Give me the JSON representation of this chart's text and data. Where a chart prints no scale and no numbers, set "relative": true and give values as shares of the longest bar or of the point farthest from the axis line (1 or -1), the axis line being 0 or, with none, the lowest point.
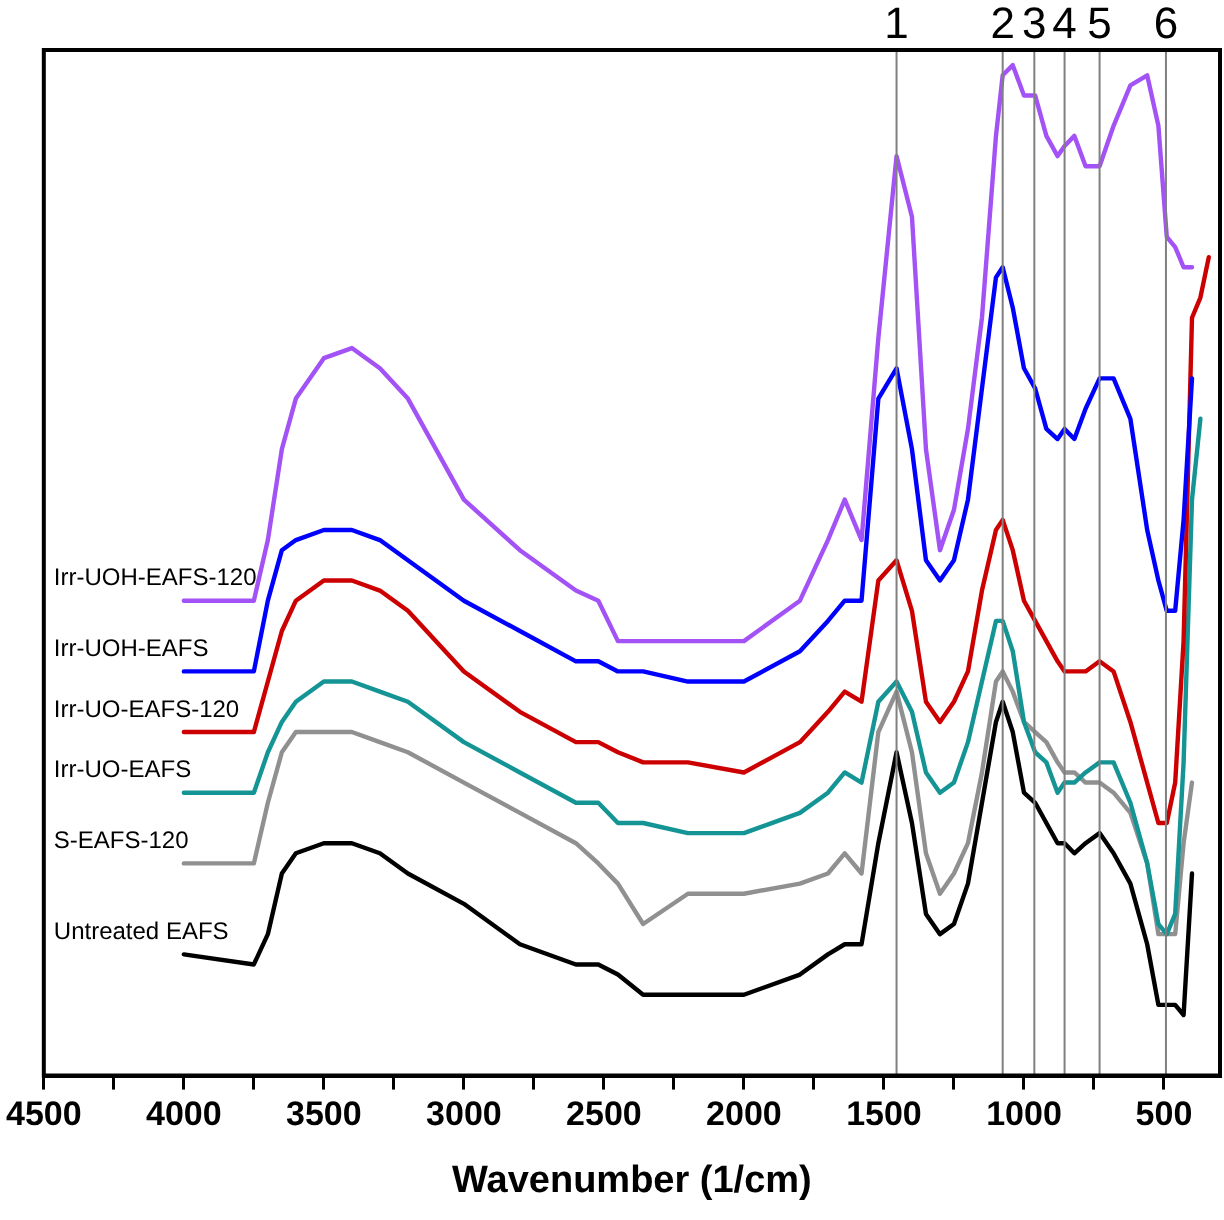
{
  "chart_data": {
    "type": "line",
    "xlabel": "Wavenumber (1/cm)",
    "relative": true,
    "legend": false,
    "grid": false,
    "marker": "none",
    "line_style": "solid",
    "tick_labels": "x",
    "xlim": [
      4500,
      300
    ],
    "xticks": [
      4500,
      {
        "value": 4250,
        "label": null
      },
      4000,
      {
        "value": 3750,
        "label": null
      },
      3500,
      {
        "value": 3250,
        "label": null
      },
      3000,
      {
        "value": 2750,
        "label": null
      },
      2500,
      {
        "value": 2250,
        "label": null
      },
      2000,
      {
        "value": 1750,
        "label": null
      },
      1500,
      {
        "value": 1250,
        "label": null
      },
      1000,
      {
        "value": 750,
        "label": null
      },
      500
    ],
    "x": [
      4000,
      3750,
      3700,
      3650,
      3600,
      3500,
      3400,
      3300,
      3200,
      3000,
      2800,
      2600,
      2520,
      2450,
      2360,
      2200,
      2000,
      1800,
      1700,
      1640,
      1580,
      1520,
      1455,
      1400,
      1350,
      1300,
      1250,
      1200,
      1150,
      1100,
      1076,
      1040,
      1000,
      960,
      920,
      880,
      855,
      820,
      780,
      730,
      680,
      620,
      560,
      520,
      490,
      460,
      430,
      400,
      370,
      340
    ],
    "series": [
      {
        "name": "Irr-UOH-EAFS-120",
        "color": "#a352f5",
        "values": [
          0.47,
          0.47,
          0.53,
          0.62,
          0.67,
          0.71,
          0.72,
          0.7,
          0.67,
          0.57,
          0.52,
          0.48,
          0.47,
          0.43,
          0.43,
          0.43,
          0.43,
          0.47,
          0.53,
          0.57,
          0.53,
          0.73,
          0.91,
          0.85,
          0.62,
          0.52,
          0.56,
          0.64,
          0.75,
          0.93,
          0.99,
          1.0,
          0.97,
          0.97,
          0.93,
          0.91,
          0.92,
          0.93,
          0.9,
          0.9,
          0.94,
          0.98,
          0.99,
          0.94,
          0.83,
          0.82,
          0.8,
          0.8,
          null,
          null
        ]
      },
      {
        "name": "Irr-UOH-EAFS",
        "color": "#0000ff",
        "values": [
          0.4,
          0.4,
          0.47,
          0.52,
          0.53,
          0.54,
          0.54,
          0.53,
          0.51,
          0.47,
          0.44,
          0.41,
          0.41,
          0.4,
          0.4,
          0.39,
          0.39,
          0.42,
          0.45,
          0.47,
          0.47,
          0.67,
          0.7,
          0.62,
          0.51,
          0.49,
          0.51,
          0.57,
          0.68,
          0.79,
          0.8,
          0.76,
          0.7,
          0.68,
          0.64,
          0.63,
          0.64,
          0.63,
          0.66,
          0.69,
          0.69,
          0.65,
          0.54,
          0.49,
          0.46,
          0.46,
          0.55,
          0.69,
          null,
          null
        ]
      },
      {
        "name": "Irr-UO-EAFS-120",
        "color": "#cc0000",
        "values": [
          0.34,
          0.34,
          0.39,
          0.44,
          0.47,
          0.49,
          0.49,
          0.48,
          0.46,
          0.4,
          0.36,
          0.33,
          0.33,
          0.32,
          0.31,
          0.31,
          0.3,
          0.33,
          0.36,
          0.38,
          0.37,
          0.49,
          0.51,
          0.46,
          0.37,
          0.35,
          0.37,
          0.4,
          0.48,
          0.54,
          0.55,
          0.52,
          0.47,
          0.45,
          0.43,
          0.41,
          0.4,
          0.4,
          0.4,
          0.41,
          0.4,
          0.35,
          0.29,
          0.25,
          0.25,
          0.29,
          0.43,
          0.75,
          0.77,
          0.81
        ]
      },
      {
        "name": "Irr-UO-EAFS",
        "color": "#149494",
        "values": [
          0.28,
          0.28,
          0.32,
          0.35,
          0.37,
          0.39,
          0.39,
          0.38,
          0.37,
          0.33,
          0.3,
          0.27,
          0.27,
          0.25,
          0.25,
          0.24,
          0.24,
          0.26,
          0.28,
          0.3,
          0.29,
          0.37,
          0.39,
          0.36,
          0.3,
          0.28,
          0.29,
          0.33,
          0.39,
          0.45,
          0.45,
          0.42,
          0.35,
          0.32,
          0.31,
          0.28,
          0.29,
          0.29,
          0.3,
          0.31,
          0.31,
          0.27,
          0.21,
          0.15,
          0.14,
          0.16,
          0.31,
          0.57,
          0.65,
          null
        ]
      },
      {
        "name": "S-EAFS-120",
        "color": "#909090",
        "values": [
          0.21,
          0.21,
          0.27,
          0.32,
          0.34,
          0.34,
          0.34,
          0.33,
          0.32,
          0.29,
          0.26,
          0.23,
          0.21,
          0.19,
          0.15,
          0.18,
          0.18,
          0.19,
          0.2,
          0.22,
          0.2,
          0.34,
          0.38,
          0.32,
          0.22,
          0.18,
          0.2,
          0.23,
          0.3,
          0.39,
          0.4,
          0.38,
          0.35,
          0.34,
          0.33,
          0.31,
          0.3,
          0.3,
          0.29,
          0.29,
          0.28,
          0.26,
          0.21,
          0.14,
          0.14,
          0.14,
          0.23,
          0.29,
          null,
          null
        ]
      },
      {
        "name": "Untreated EAFS",
        "color": "#000000",
        "values": [
          0.12,
          0.11,
          0.14,
          0.2,
          0.22,
          0.23,
          0.23,
          0.22,
          0.2,
          0.17,
          0.13,
          0.11,
          0.11,
          0.1,
          0.08,
          0.08,
          0.08,
          0.1,
          0.12,
          0.13,
          0.13,
          0.23,
          0.32,
          0.25,
          0.16,
          0.14,
          0.15,
          0.19,
          0.27,
          0.35,
          0.37,
          0.34,
          0.28,
          0.27,
          0.25,
          0.23,
          0.23,
          0.22,
          0.23,
          0.24,
          0.22,
          0.19,
          0.13,
          0.07,
          0.07,
          0.07,
          0.06,
          0.2,
          null,
          null
        ]
      }
    ],
    "ref_lines": [
      {
        "axis": "x",
        "value": 1455,
        "color": "#808080"
      },
      {
        "axis": "x",
        "value": 1076,
        "color": "#808080"
      },
      {
        "axis": "x",
        "value": 963,
        "color": "#808080"
      },
      {
        "axis": "x",
        "value": 855,
        "color": "#808080"
      },
      {
        "axis": "x",
        "value": 730,
        "color": "#808080"
      },
      {
        "axis": "x",
        "value": 493,
        "color": "#808080"
      }
    ],
    "annotations": [
      "1",
      "2",
      "3",
      "4",
      "5",
      "6"
    ]
  }
}
